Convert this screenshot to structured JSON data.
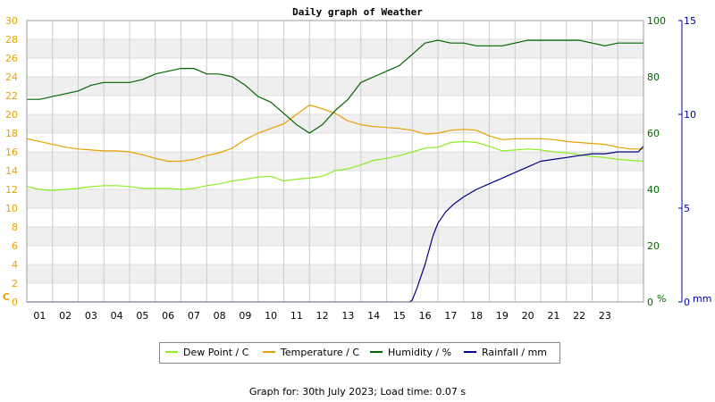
{
  "chart_data": {
    "type": "line",
    "title": "Daily graph of Weather",
    "x_ticks": [
      "01",
      "02",
      "03",
      "04",
      "05",
      "06",
      "07",
      "08",
      "09",
      "10",
      "11",
      "12",
      "13",
      "14",
      "15",
      "16",
      "17",
      "18",
      "19",
      "20",
      "21",
      "22",
      "23"
    ],
    "x_range_hours": [
      0,
      24
    ],
    "axes": {
      "left": {
        "unit_label": "C",
        "range": [
          0,
          30
        ],
        "ticks": [
          0,
          2,
          4,
          6,
          8,
          10,
          12,
          14,
          16,
          18,
          20,
          22,
          24,
          26,
          28,
          30
        ],
        "color": "#e8a000"
      },
      "right1": {
        "unit_label": "%",
        "range": [
          0,
          100
        ],
        "ticks": [
          0,
          20,
          40,
          60,
          80,
          100
        ],
        "color": "#006400"
      },
      "right2": {
        "unit_label": "mm",
        "range": [
          0,
          15
        ],
        "ticks": [
          0,
          5,
          10,
          15
        ],
        "color": "#0000aa"
      }
    },
    "grid": true,
    "legend_position": "bottom",
    "series": [
      {
        "name": "Dew Point / C",
        "axis": "left",
        "color": "#88ee22",
        "x": [
          0,
          0.5,
          1,
          1.5,
          2,
          2.5,
          3,
          3.5,
          4,
          4.5,
          5,
          5.5,
          6,
          6.5,
          7,
          7.5,
          8,
          8.5,
          9,
          9.5,
          10,
          10.5,
          11,
          11.5,
          12,
          12.5,
          13,
          13.5,
          14,
          14.5,
          15,
          15.5,
          16,
          16.5,
          17,
          17.5,
          18,
          18.5,
          19,
          19.5,
          20,
          20.5,
          21,
          21.5,
          22,
          22.5,
          23,
          23.5,
          24
        ],
        "values": [
          12.3,
          12.0,
          11.9,
          12.0,
          12.1,
          12.3,
          12.4,
          12.4,
          12.3,
          12.1,
          12.1,
          12.1,
          12.0,
          12.1,
          12.4,
          12.6,
          12.9,
          13.1,
          13.3,
          13.4,
          12.9,
          13.1,
          13.2,
          13.4,
          14.0,
          14.2,
          14.6,
          15.1,
          15.3,
          15.6,
          16.0,
          16.4,
          16.5,
          17.0,
          17.1,
          17.0,
          16.6,
          16.1,
          16.2,
          16.3,
          16.2,
          16.0,
          15.9,
          15.7,
          15.5,
          15.4,
          15.2,
          15.1,
          15.0
        ]
      },
      {
        "name": "Temperature / C",
        "axis": "left",
        "color": "#e8a000",
        "x": [
          0,
          0.5,
          1,
          1.5,
          2,
          2.5,
          3,
          3.5,
          4,
          4.5,
          5,
          5.5,
          6,
          6.5,
          7,
          7.5,
          8,
          8.5,
          9,
          9.5,
          10,
          10.5,
          11,
          11.5,
          12,
          12.5,
          13,
          13.5,
          14,
          14.5,
          15,
          15.5,
          16,
          16.5,
          17,
          17.5,
          18,
          18.5,
          19,
          19.5,
          20,
          20.5,
          21,
          21.5,
          22,
          22.5,
          23,
          23.5,
          24
        ],
        "values": [
          17.4,
          17.1,
          16.8,
          16.5,
          16.3,
          16.2,
          16.1,
          16.1,
          16.0,
          15.7,
          15.3,
          15.0,
          15.0,
          15.2,
          15.6,
          15.9,
          16.4,
          17.3,
          18.0,
          18.5,
          19.0,
          20.0,
          21.0,
          20.6,
          20.1,
          19.3,
          18.9,
          18.7,
          18.6,
          18.5,
          18.3,
          17.9,
          18.0,
          18.3,
          18.4,
          18.3,
          17.7,
          17.3,
          17.4,
          17.4,
          17.4,
          17.3,
          17.1,
          17.0,
          16.9,
          16.8,
          16.5,
          16.3,
          16.3
        ]
      },
      {
        "name": "Humidity / %",
        "axis": "right1",
        "color": "#006400",
        "x": [
          0,
          0.5,
          1,
          1.5,
          2,
          2.5,
          3,
          3.5,
          4,
          4.5,
          5,
          5.5,
          6,
          6.5,
          7,
          7.5,
          8,
          8.5,
          9,
          9.5,
          10,
          10.5,
          11,
          11.5,
          12,
          12.5,
          13,
          13.5,
          14,
          14.5,
          15,
          15.5,
          16,
          16.5,
          17,
          17.5,
          18,
          18.5,
          19,
          19.5,
          20,
          20.5,
          21,
          21.5,
          22,
          22.5,
          23,
          23.5,
          24
        ],
        "values": [
          72,
          72,
          73,
          74,
          75,
          77,
          78,
          78,
          78,
          79,
          81,
          82,
          83,
          83,
          81,
          81,
          80,
          77,
          73,
          71,
          67,
          63,
          60,
          63,
          68,
          72,
          78,
          80,
          82,
          84,
          88,
          92,
          93,
          92,
          92,
          91,
          91,
          91,
          92,
          93,
          93,
          93,
          93,
          93,
          92,
          91,
          92,
          92,
          92
        ]
      },
      {
        "name": "Rainfall / mm",
        "axis": "right2",
        "color": "#000088",
        "x": [
          0,
          14.9,
          15.0,
          15.2,
          15.5,
          15.8,
          16.0,
          16.3,
          16.6,
          17.0,
          17.5,
          18.0,
          18.5,
          19.0,
          19.5,
          20.0,
          20.5,
          21.0,
          21.5,
          22.0,
          22.5,
          23.0,
          23.8,
          24
        ],
        "values": [
          0,
          0,
          0.1,
          0.8,
          2.0,
          3.5,
          4.2,
          4.8,
          5.2,
          5.6,
          6.0,
          6.3,
          6.6,
          6.9,
          7.2,
          7.5,
          7.6,
          7.7,
          7.8,
          7.9,
          7.9,
          8.0,
          8.0,
          8.3
        ]
      }
    ]
  },
  "footer": {
    "text": "Graph for: 30th July 2023; Load time: 0.07 s"
  }
}
